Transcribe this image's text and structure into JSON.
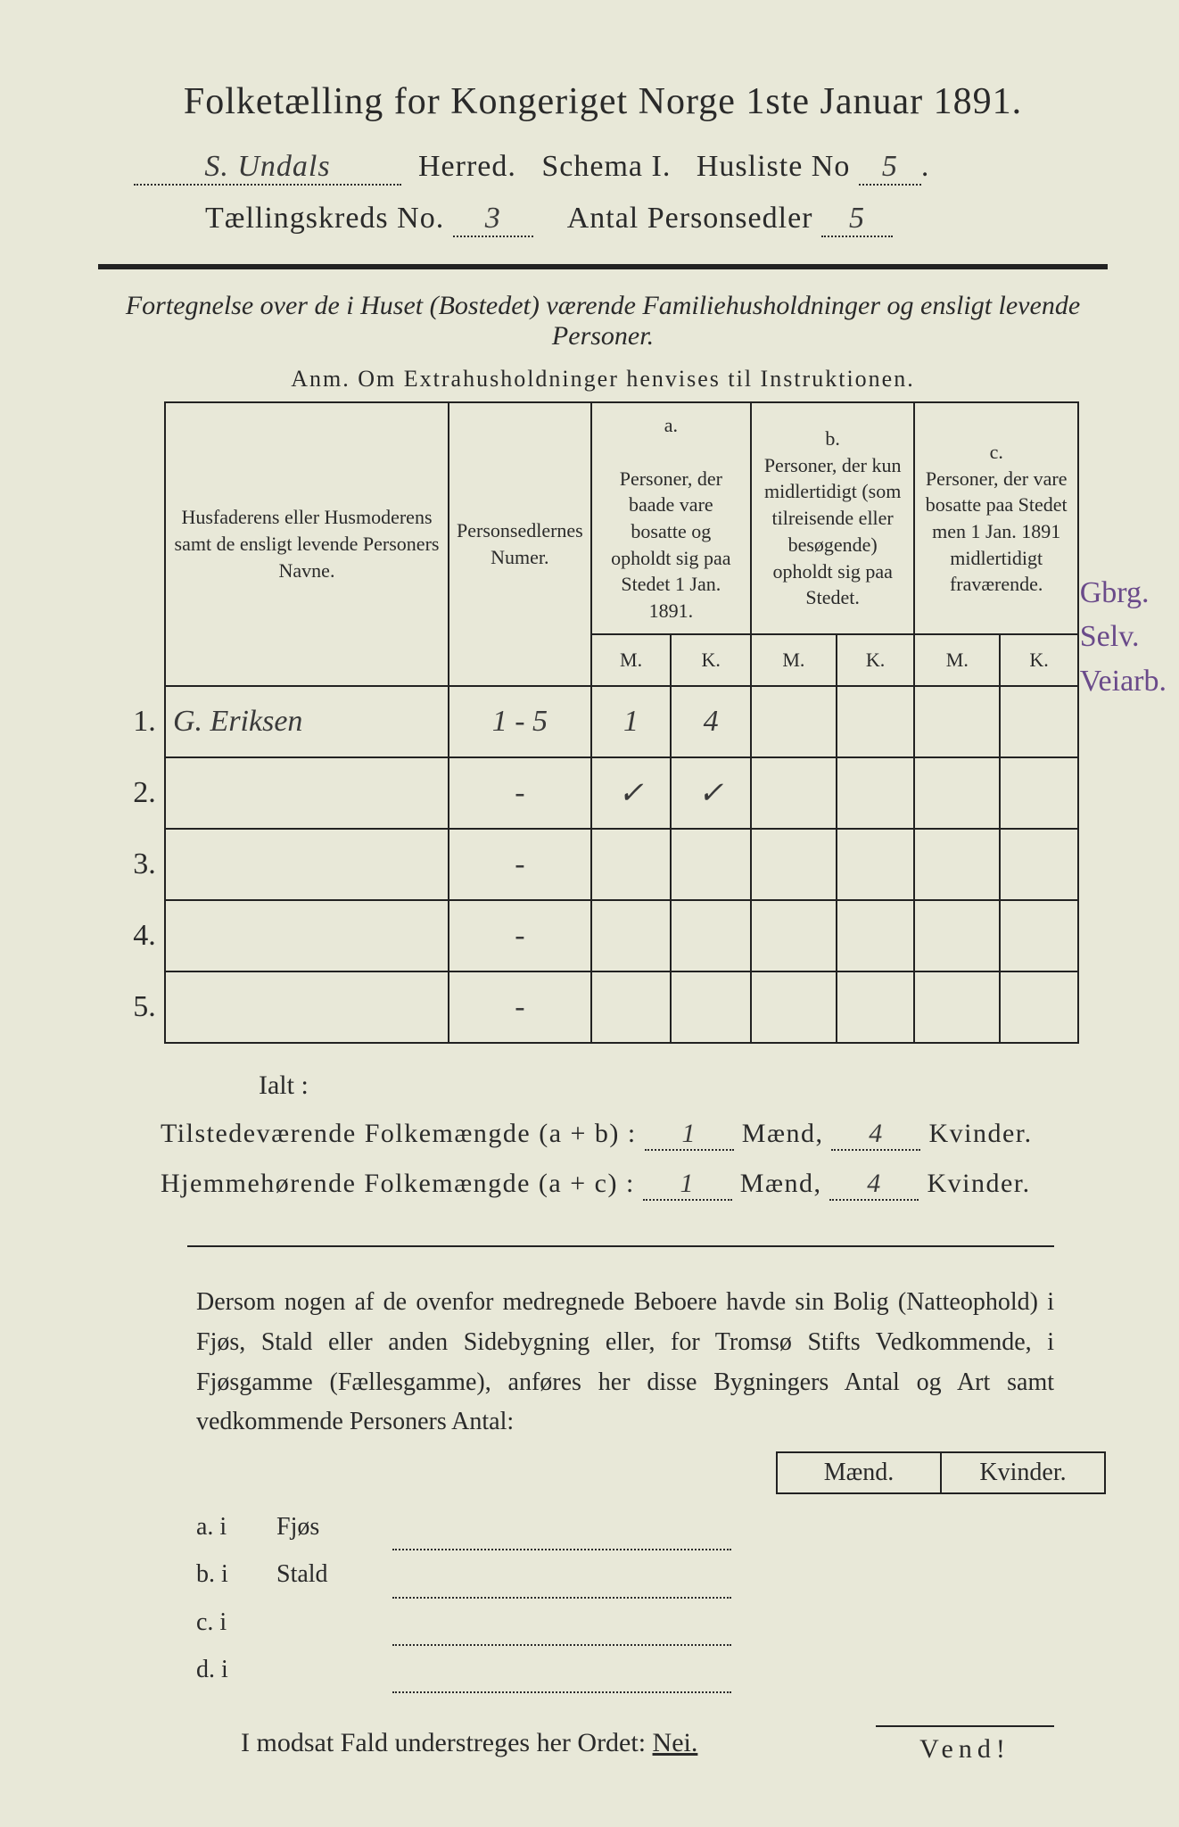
{
  "title": "Folketælling for Kongeriget Norge 1ste Januar 1891.",
  "header": {
    "herred_value": "S. Undals",
    "herred_label": "Herred.",
    "schema_label": "Schema I.",
    "husliste_label": "Husliste No",
    "husliste_value": "5",
    "taellingskreds_label": "Tællingskreds No.",
    "taellingskreds_value": "3",
    "antal_label": "Antal Personsedler",
    "antal_value": "5"
  },
  "subtitle": "Fortegnelse over de i Huset (Bostedet) værende Familiehusholdninger og ensligt levende Personer.",
  "anm": "Anm.   Om Extrahusholdninger henvises til Instruktionen.",
  "table": {
    "col1": "Husfaderens eller Husmoderens samt de ensligt levende Personers Navne.",
    "col2": "Personsedlernes Numer.",
    "colA_top": "a.",
    "colA": "Personer, der baade vare bosatte og opholdt sig paa Stedet 1 Jan. 1891.",
    "colB_top": "b.",
    "colB": "Personer, der kun midlertidigt (som tilreisende eller besøgende) opholdt sig paa Stedet.",
    "colC_top": "c.",
    "colC": "Personer, der vare bosatte paa Stedet men 1 Jan. 1891 midlertidigt fraværende.",
    "M": "M.",
    "K": "K.",
    "rows": [
      {
        "n": "1.",
        "name": "G. Eriksen",
        "num": "1 - 5",
        "aM": "1",
        "aK": "4",
        "bM": "",
        "bK": "",
        "cM": "",
        "cK": ""
      },
      {
        "n": "2.",
        "name": "",
        "num": "-",
        "aM": "✓",
        "aK": "✓",
        "bM": "",
        "bK": "",
        "cM": "",
        "cK": ""
      },
      {
        "n": "3.",
        "name": "",
        "num": "-",
        "aM": "",
        "aK": "",
        "bM": "",
        "bK": "",
        "cM": "",
        "cK": ""
      },
      {
        "n": "4.",
        "name": "",
        "num": "-",
        "aM": "",
        "aK": "",
        "bM": "",
        "bK": "",
        "cM": "",
        "cK": ""
      },
      {
        "n": "5.",
        "name": "",
        "num": "-",
        "aM": "",
        "aK": "",
        "bM": "",
        "bK": "",
        "cM": "",
        "cK": ""
      }
    ]
  },
  "ialt": "Ialt :",
  "sum1": {
    "label": "Tilstedeværende Folkemængde (a + b) :",
    "maend": "1",
    "maend_lbl": "Mænd,",
    "kvinder": "4",
    "kvinder_lbl": "Kvinder."
  },
  "sum2": {
    "label": "Hjemmehørende Folkemængde (a + c) :",
    "maend": "1",
    "maend_lbl": "Mænd,",
    "kvinder": "4",
    "kvinder_lbl": "Kvinder."
  },
  "margin": {
    "l1": "Gbrg.",
    "l2": "Selv.",
    "l3": "Veiarb."
  },
  "para": "Dersom nogen af de ovenfor medregnede Beboere havde sin Bolig (Natte­ophold) i Fjøs, Stald eller anden Sidebygning eller, for Tromsø Stifts Ved­kommende, i Fjøsgamme (Fællesgamme), anføres her disse Bygningers Antal og Art samt vedkommende Personers Antal:",
  "sideb": {
    "maend": "Mænd.",
    "kvinder": "Kvinder.",
    "rows": [
      {
        "p": "a.  i",
        "l": "Fjøs"
      },
      {
        "p": "b.  i",
        "l": "Stald"
      },
      {
        "p": "c.  i",
        "l": ""
      },
      {
        "p": "d.  i",
        "l": ""
      }
    ]
  },
  "nei": "I modsat Fald understreges her Ordet: ",
  "nei_word": "Nei.",
  "vend": "Vend!"
}
